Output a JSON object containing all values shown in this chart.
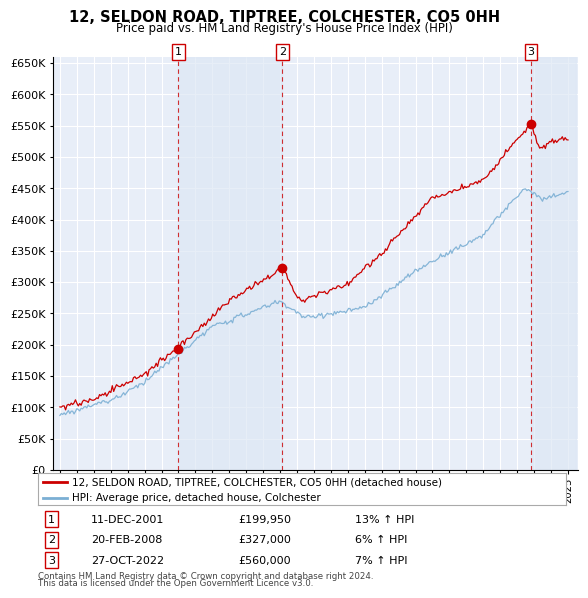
{
  "title": "12, SELDON ROAD, TIPTREE, COLCHESTER, CO5 0HH",
  "subtitle": "Price paid vs. HM Land Registry's House Price Index (HPI)",
  "legend_line1": "12, SELDON ROAD, TIPTREE, COLCHESTER, CO5 0HH (detached house)",
  "legend_line2": "HPI: Average price, detached house, Colchester",
  "footer1": "Contains HM Land Registry data © Crown copyright and database right 2024.",
  "footer2": "This data is licensed under the Open Government Licence v3.0.",
  "transactions": [
    {
      "num": 1,
      "date": "11-DEC-2001",
      "price": "£199,950",
      "pct": "13% ↑ HPI",
      "year": 2002.0
    },
    {
      "num": 2,
      "date": "20-FEB-2008",
      "price": "£327,000",
      "pct": "6% ↑ HPI",
      "year": 2008.13
    },
    {
      "num": 3,
      "date": "27-OCT-2022",
      "price": "£560,000",
      "pct": "7% ↑ HPI",
      "year": 2022.82
    }
  ],
  "red_color": "#cc0000",
  "blue_color": "#7bafd4",
  "shade_color": "#dde8f5",
  "background_plot": "#e8eef8",
  "grid_color": "#ffffff",
  "ylim": [
    0,
    660000
  ],
  "yticks": [
    0,
    50000,
    100000,
    150000,
    200000,
    250000,
    300000,
    350000,
    400000,
    450000,
    500000,
    550000,
    600000,
    650000
  ],
  "year_start": 1995,
  "year_end": 2025
}
